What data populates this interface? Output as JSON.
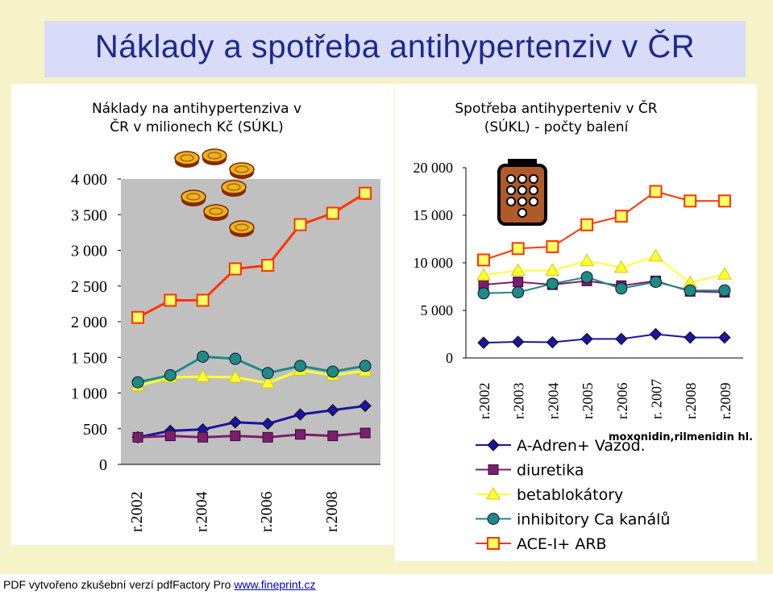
{
  "slide_title": "Náklady a spotřeba antihypertenziv v ČR",
  "footer": {
    "text": "PDF vytvořeno zkušební verzí pdfFactory Pro ",
    "link": "www.fineprint.cz"
  },
  "colors": {
    "A-Adren+ Vazod.": "#1b14a0",
    "diuretika": "#7a1f6e",
    "betablokátory": "#ffff33",
    "inhibitory Ca kanálů": "#1f8a82",
    "ACE-I+ ARB": "#ff3300"
  },
  "icons": [
    "coin-pile-icon",
    "pill-pack-icon"
  ],
  "chart_data": [
    {
      "type": "line",
      "title": "Náklady na antihypertenziva v ČR v milionech Kč (SÚKL)",
      "title_lines": [
        "Náklady na antihypertenziva v",
        "ČR v milionech Kč (SÚKL)"
      ],
      "categories": [
        "r.2002",
        "",
        "r.2004",
        "",
        "r.2006",
        "",
        "r.2008",
        ""
      ],
      "tick_labels": [
        "r.2002",
        "r.2004",
        "r.2006",
        "r.2008"
      ],
      "y_tick_labels": [
        "0",
        "500",
        "1 000",
        "1 500",
        "2 000",
        "2 500",
        "3 000",
        "3 500",
        "4 000"
      ],
      "ylim": [
        0,
        4000
      ],
      "grid": false,
      "legend": "none",
      "series": [
        {
          "name": "A-Adren+ Vazod.",
          "marker": "diamond",
          "values": [
            380,
            470,
            490,
            590,
            570,
            700,
            760,
            820
          ]
        },
        {
          "name": "diuretika",
          "marker": "square",
          "values": [
            380,
            400,
            380,
            400,
            380,
            420,
            400,
            440
          ]
        },
        {
          "name": "betablokátory",
          "marker": "triangle",
          "values": [
            1100,
            1220,
            1230,
            1220,
            1140,
            1320,
            1250,
            1310
          ]
        },
        {
          "name": "inhibitory Ca kanálů",
          "marker": "circle",
          "values": [
            1150,
            1250,
            1510,
            1480,
            1280,
            1380,
            1300,
            1380
          ]
        },
        {
          "name": "ACE-I+ ARB",
          "marker": "square",
          "values": [
            2060,
            2300,
            2300,
            2740,
            2790,
            3360,
            3520,
            3800
          ]
        }
      ]
    },
    {
      "type": "line",
      "title": "Spotřeba antihypertenziv v ČR (SÚKL) - počty balení",
      "title_lines": [
        "Spotřeba antihyperteniv v ČR",
        "(SÚKL) - počty balení"
      ],
      "categories": [
        "r.2002",
        "r.2003",
        "r.2004",
        "r.2005",
        "r.2006",
        "r. 2007",
        "r.2008",
        "r.2009"
      ],
      "y_tick_labels": [
        "0",
        "5 000",
        "10 000",
        "15 000",
        "20 000"
      ],
      "ylim": [
        0,
        20000
      ],
      "grid": false,
      "legend": "bottom-right",
      "legend_note": "moxonidin,rilmenidin hl.",
      "series": [
        {
          "name": "A-Adren+ Vazod.",
          "marker": "diamond",
          "values": [
            1600,
            1700,
            1650,
            2000,
            2000,
            2500,
            2150,
            2150
          ]
        },
        {
          "name": "diuretika",
          "marker": "square",
          "values": [
            7700,
            8000,
            7700,
            8100,
            7600,
            8100,
            7000,
            6900
          ]
        },
        {
          "name": "betablokátory",
          "marker": "triangle",
          "values": [
            8700,
            9200,
            9200,
            10200,
            9500,
            10700,
            7900,
            8800
          ]
        },
        {
          "name": "inhibitory Ca kanálů",
          "marker": "circle",
          "values": [
            6800,
            6900,
            7800,
            8500,
            7300,
            8000,
            7100,
            7100
          ]
        },
        {
          "name": "ACE-I+ ARB",
          "marker": "square",
          "values": [
            10300,
            11500,
            11700,
            14000,
            14900,
            17500,
            16500,
            16500
          ]
        }
      ]
    }
  ]
}
